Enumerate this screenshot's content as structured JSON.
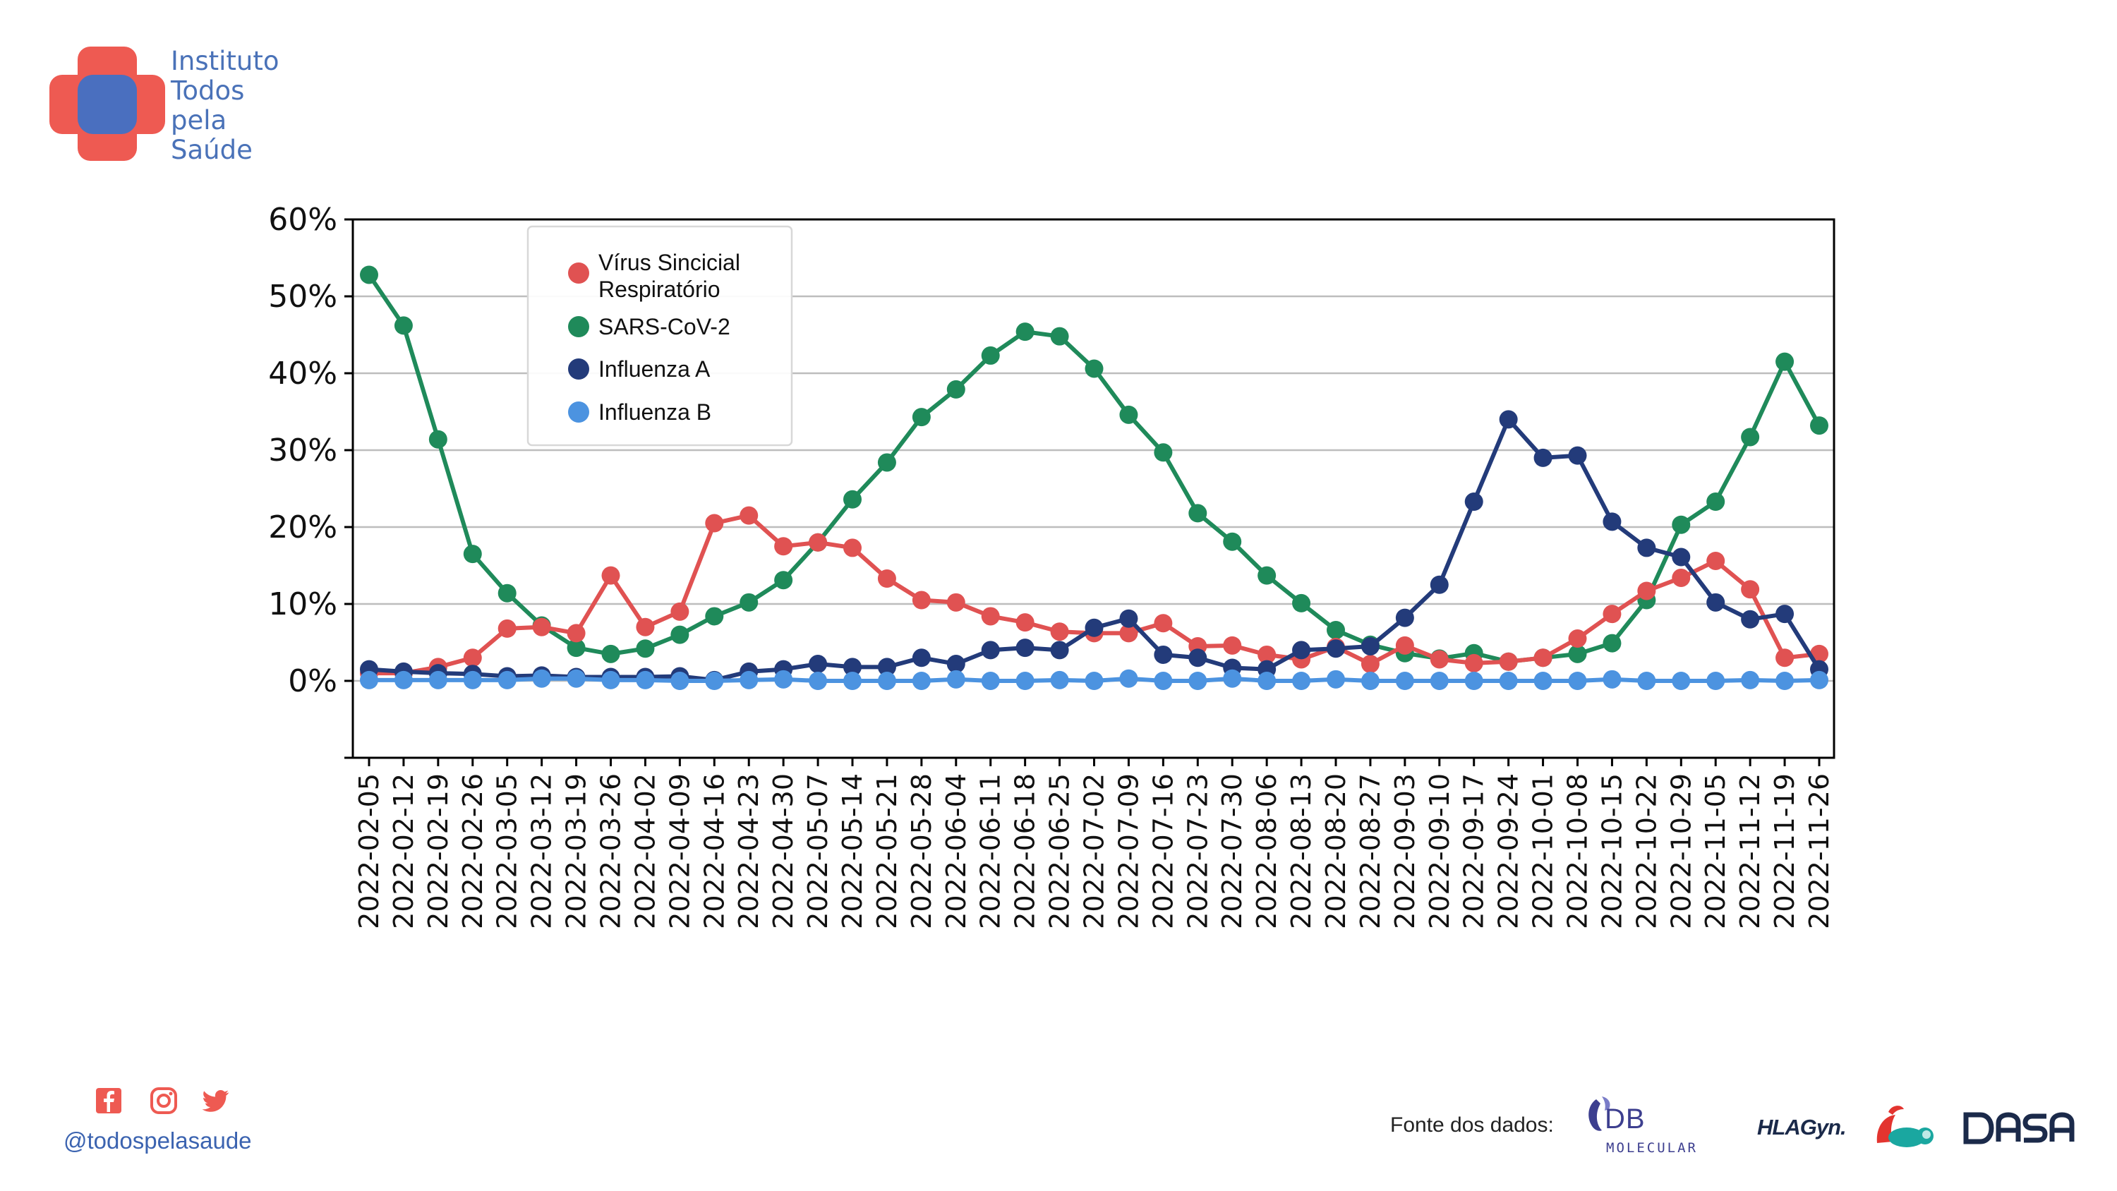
{
  "brand": {
    "lines": [
      "Instituto",
      "Todos",
      "pela",
      "Saúde"
    ]
  },
  "social": {
    "handle": "@todospelasaude",
    "icons": [
      "facebook-icon",
      "instagram-icon",
      "twitter-icon"
    ]
  },
  "footer": {
    "source_label": "Fonte dos dados:",
    "logos": {
      "db_main": "DB",
      "db_sub": "MOLECULAR",
      "hlagyn": "HLAGyn.",
      "dasa": "DASA"
    }
  },
  "colors": {
    "rsv": "#e05252",
    "sars": "#1f8a5a",
    "fluA": "#233b7a",
    "fluB": "#4c93e0",
    "brand": "#4a72b8",
    "brand_red": "#ee5a52"
  },
  "chart_data": {
    "type": "line",
    "x": [
      "2022-02-05",
      "2022-02-12",
      "2022-02-19",
      "2022-02-26",
      "2022-03-05",
      "2022-03-12",
      "2022-03-19",
      "2022-03-26",
      "2022-04-02",
      "2022-04-09",
      "2022-04-16",
      "2022-04-23",
      "2022-04-30",
      "2022-05-07",
      "2022-05-14",
      "2022-05-21",
      "2022-05-28",
      "2022-06-04",
      "2022-06-11",
      "2022-06-18",
      "2022-06-25",
      "2022-07-02",
      "2022-07-09",
      "2022-07-16",
      "2022-07-23",
      "2022-07-30",
      "2022-08-06",
      "2022-08-13",
      "2022-08-20",
      "2022-08-27",
      "2022-09-03",
      "2022-09-10",
      "2022-09-17",
      "2022-09-24",
      "2022-10-01",
      "2022-10-08",
      "2022-10-15",
      "2022-10-22",
      "2022-10-29",
      "2022-11-05",
      "2022-11-12",
      "2022-11-19",
      "2022-11-26"
    ],
    "y_ticks": [
      "60%",
      "50%",
      "40%",
      "30%",
      "20%",
      "10%",
      "0%"
    ],
    "ylim": [
      -10,
      60
    ],
    "grid": "horizontal",
    "legend_position": "top-left",
    "series": [
      {
        "name": "Vírus Sincicial Respiratório",
        "color": "#e05252",
        "values": [
          1.0,
          1.0,
          1.8,
          3.0,
          6.8,
          7.0,
          6.2,
          13.7,
          7.0,
          9.0,
          20.5,
          21.5,
          17.5,
          18.0,
          17.3,
          13.3,
          10.5,
          10.2,
          8.4,
          7.6,
          6.4,
          6.2,
          6.2,
          7.5,
          4.5,
          4.6,
          3.4,
          2.8,
          4.4,
          2.2,
          4.6,
          2.8,
          2.3,
          2.5,
          3.0,
          5.5,
          8.7,
          11.7,
          13.4,
          15.6,
          11.9,
          3.0,
          3.5
        ]
      },
      {
        "name": "SARS-CoV-2",
        "color": "#1f8a5a",
        "values": [
          52.8,
          46.2,
          31.4,
          16.5,
          11.4,
          7.2,
          4.3,
          3.5,
          4.2,
          6.0,
          8.4,
          10.2,
          13.1,
          18.0,
          23.6,
          28.4,
          34.3,
          37.9,
          42.3,
          45.4,
          44.8,
          40.6,
          34.6,
          29.7,
          21.8,
          18.1,
          13.7,
          10.1,
          6.6,
          4.7,
          3.6,
          2.9,
          3.6,
          2.5,
          3.0,
          3.5,
          4.9,
          10.5,
          20.3,
          23.3,
          31.7,
          41.5,
          33.2
        ]
      },
      {
        "name": "Influenza A",
        "color": "#233b7a",
        "values": [
          1.5,
          1.2,
          1.0,
          0.9,
          0.6,
          0.7,
          0.5,
          0.5,
          0.5,
          0.6,
          0.1,
          1.2,
          1.5,
          2.2,
          1.8,
          1.8,
          3.0,
          2.2,
          4.0,
          4.3,
          4.0,
          6.9,
          8.1,
          3.4,
          3.0,
          1.7,
          1.5,
          4.0,
          4.2,
          4.5,
          8.2,
          12.5,
          23.3,
          34.0,
          29.0,
          29.3,
          20.7,
          17.3,
          16.1,
          10.2,
          8.0,
          8.7,
          1.5
        ]
      },
      {
        "name": "Influenza B",
        "color": "#4c93e0",
        "values": [
          0.1,
          0.1,
          0.1,
          0.1,
          0.1,
          0.3,
          0.3,
          0.1,
          0.1,
          0.0,
          0.0,
          0.1,
          0.2,
          0.0,
          0.0,
          0.0,
          0.0,
          0.2,
          0.0,
          0.0,
          0.1,
          0.0,
          0.3,
          0.0,
          0.0,
          0.3,
          0.0,
          0.0,
          0.2,
          0.0,
          0.0,
          0.0,
          0.0,
          0.0,
          0.0,
          0.0,
          0.2,
          0.0,
          0.0,
          0.0,
          0.1,
          0.0,
          0.1
        ]
      }
    ]
  }
}
